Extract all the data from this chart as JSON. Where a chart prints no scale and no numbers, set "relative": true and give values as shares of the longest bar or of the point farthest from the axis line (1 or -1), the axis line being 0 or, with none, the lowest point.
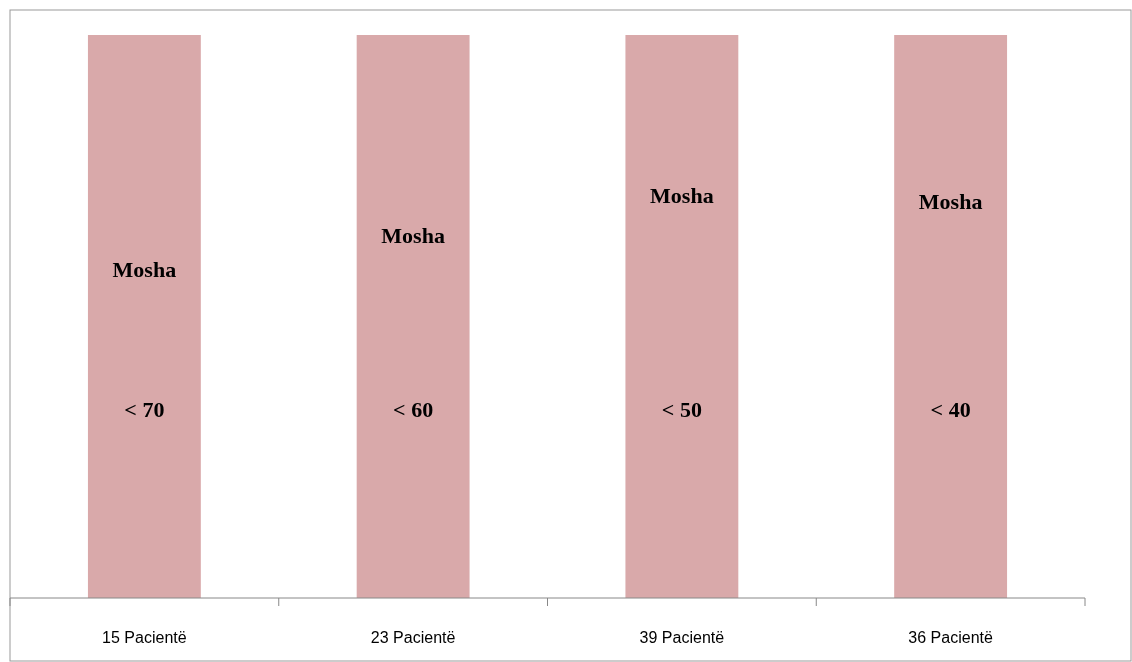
{
  "chart_data": {
    "type": "bar",
    "relative": true,
    "categories": [
      "15 Pacientë",
      "23 Pacientë",
      "39 Pacientë",
      "36 Pacientë"
    ],
    "values": [
      1,
      1,
      1,
      1
    ],
    "color": "#d9a9aa",
    "annotations": [
      "Mosha",
      "< 70",
      "Mosha",
      "< 60",
      "Mosha",
      "< 50",
      "Mosha",
      "< 40"
    ]
  }
}
